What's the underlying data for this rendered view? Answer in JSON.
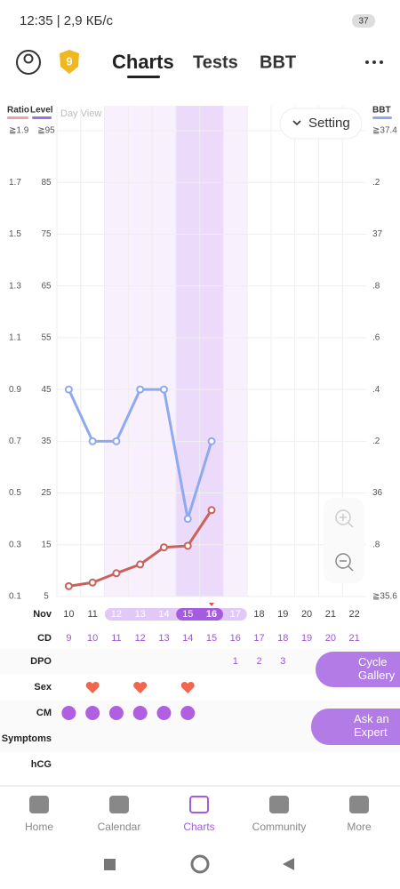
{
  "status_bar": {
    "time": "12:35 | 2,9 КБ/с",
    "battery": "37"
  },
  "header": {
    "badge": "9",
    "tabs": [
      "Charts",
      "Tests",
      "BBT"
    ],
    "active_tab": 0
  },
  "chart_controls": {
    "view": "Day View",
    "setting": "Setting"
  },
  "chart_data": {
    "type": "line",
    "ratio_label": "Ratio",
    "y_label": "Level",
    "y2_label": "BBT",
    "x": [
      10,
      11,
      12,
      13,
      14,
      15,
      16,
      17,
      18,
      19,
      20,
      21,
      22
    ],
    "ylim": [
      5,
      95
    ],
    "yticks": [
      {
        "value": 95,
        "label": "≧95"
      },
      85,
      75,
      65,
      55,
      45,
      35,
      25,
      15,
      5
    ],
    "ratio_lim": [
      0.1,
      1.9
    ],
    "ratio_ticks": [
      {
        "value": 1.9,
        "label": "≧1.9"
      },
      1.7,
      1.5,
      1.3,
      1.1,
      0.9,
      0.7,
      0.5,
      0.3,
      0.1
    ],
    "y2lim": [
      35.6,
      37.4
    ],
    "y2ticks": [
      {
        "value": 37.4,
        "label": "≧37.4"
      },
      {
        "value": 37.2,
        "label": ".2"
      },
      37,
      {
        "value": 36.8,
        "label": ".8"
      },
      {
        "value": 36.6,
        "label": ".6"
      },
      {
        "value": 36.4,
        "label": ".4"
      },
      {
        "value": 36.2,
        "label": ".2"
      },
      36,
      {
        "value": 35.8,
        "label": ".8"
      },
      {
        "value": 35.6,
        "label": "≧35.6"
      }
    ],
    "series": [
      {
        "color": "#c9625b",
        "axis": "y",
        "values": [
          7,
          7.7,
          9.5,
          11.2,
          14.5,
          14.8,
          21.7,
          null,
          null,
          null,
          null,
          null,
          null
        ]
      },
      {
        "color": "#8fa9ef",
        "axis": "y2",
        "values": [
          36.4,
          36.2,
          36.2,
          36.4,
          36.4,
          35.9,
          36.2,
          null,
          null,
          null,
          null,
          null,
          null
        ]
      }
    ],
    "fertile_days": [
      12,
      13,
      14,
      15,
      16,
      17
    ],
    "ovulation_days": [
      15,
      16
    ],
    "today": 16,
    "grid": true
  },
  "rows": {
    "labels": [
      "Nov",
      "CD",
      "DPO",
      "Sex",
      "CM",
      "Symptoms",
      "hCG"
    ],
    "cd": [
      9,
      10,
      11,
      12,
      13,
      14,
      15,
      16,
      17,
      18,
      19,
      20,
      21
    ],
    "dpo": [
      null,
      null,
      null,
      null,
      null,
      null,
      null,
      1,
      2,
      3,
      null,
      null,
      null
    ],
    "sex": [
      false,
      true,
      false,
      true,
      false,
      true,
      false,
      false,
      false,
      false,
      false,
      false,
      false
    ],
    "cm": [
      true,
      true,
      true,
      true,
      true,
      true,
      false,
      false,
      false,
      false,
      false,
      false,
      false
    ]
  },
  "buttons": {
    "gallery": "Cycle Gallery",
    "expert": "Ask an Expert"
  },
  "nav": {
    "items": [
      "Home",
      "Calendar",
      "Charts",
      "Community",
      "More"
    ],
    "active": 2
  }
}
